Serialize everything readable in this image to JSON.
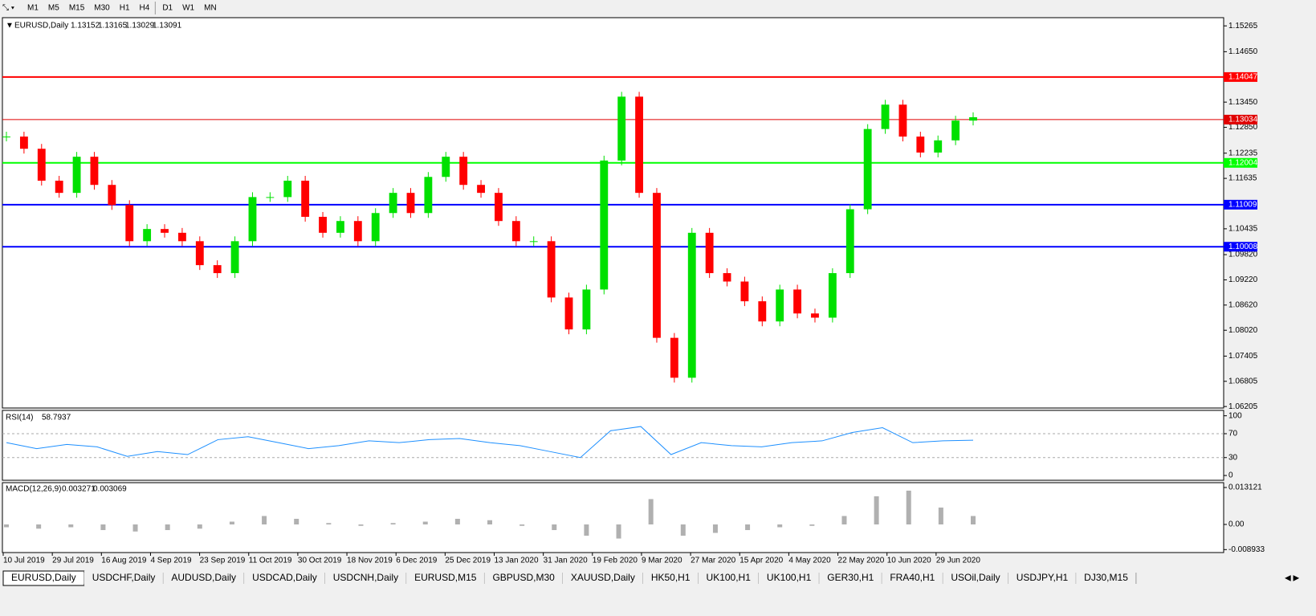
{
  "toolbar": {
    "timeframes": [
      "M1",
      "M5",
      "M15",
      "M30",
      "H1",
      "H4",
      "D1",
      "W1",
      "MN"
    ]
  },
  "chart_data": [
    {
      "type": "candlestick",
      "title": "EURUSD,Daily",
      "quote": [
        1.13152,
        1.13165,
        1.13029,
        1.13091
      ],
      "up_color": "#00e000",
      "down_color": "#ff0000",
      "values": [
        1.1263,
        1.1234,
        1.1158,
        1.1129,
        1.1215,
        1.1148,
        1.11,
        1.1014,
        1.1043,
        1.1034,
        1.1014,
        1.0957,
        1.0938,
        1.1014,
        1.1119,
        1.1119,
        1.1158,
        1.1072,
        1.1034,
        1.1062,
        1.1014,
        1.1081,
        1.1129,
        1.1081,
        1.1167,
        1.1215,
        1.1148,
        1.1129,
        1.1062,
        1.1014,
        1.1014,
        1.088,
        1.0804,
        1.0899,
        1.1206,
        1.1358,
        1.1129,
        1.0784,
        1.0689,
        1.1034,
        1.0938,
        1.0918,
        1.0871,
        1.0823,
        1.0899,
        1.0842,
        1.0832,
        1.0938,
        1.109,
        1.1281,
        1.1339,
        1.1263,
        1.1225,
        1.1254,
        1.1301,
        1.13091
      ],
      "ylim": [
        1.0617,
        1.1546
      ],
      "yticks": [
        1.15265,
        {
          "value": 1.1465,
          "label": "1.14650"
        },
        {
          "value": 1.1345,
          "label": "1.13450"
        },
        {
          "value": 1.1285,
          "label": "1.12850"
        },
        1.12235,
        1.11635,
        1.10435,
        {
          "value": 1.0982,
          "label": "1.09820"
        },
        {
          "value": 1.0922,
          "label": "1.09220"
        },
        {
          "value": 1.0862,
          "label": "1.08620"
        },
        {
          "value": 1.0802,
          "label": "1.08020"
        },
        1.07405,
        1.06805,
        1.06205
      ],
      "levels": [
        {
          "value": 1.14047,
          "color": "#ff0000"
        },
        {
          "value": 1.13034,
          "color": "#e00000"
        },
        {
          "value": 1.12004,
          "color": "#00ff00"
        },
        {
          "value": 1.11009,
          "color": "#0000ff"
        },
        {
          "value": 1.10008,
          "color": "#0000ff"
        }
      ],
      "date_labels": [
        "10 Jul 2019",
        "29 Jul 2019",
        "16 Aug 2019",
        "4 Sep 2019",
        "23 Sep 2019",
        "11 Oct 2019",
        "30 Oct 2019",
        "18 Nov 2019",
        "6 Dec 2019",
        "25 Dec 2019",
        "13 Jan 2020",
        "31 Jan 2020",
        "19 Feb 2020",
        "9 Mar 2020",
        "27 Mar 2020",
        "15 Apr 2020",
        "4 May 2020",
        "22 May 2020",
        "10 Jun 2020",
        "29 Jun 2020"
      ]
    },
    {
      "type": "line",
      "title": "RSI(14)",
      "current": 58.7937,
      "color": "#1e90ff",
      "values": [
        55,
        45,
        52,
        48,
        32,
        40,
        35,
        60,
        65,
        55,
        45,
        50,
        58,
        55,
        60,
        62,
        55,
        50,
        40,
        30,
        75,
        82,
        35,
        55,
        50,
        48,
        55,
        58,
        72,
        80,
        55,
        58,
        59
      ],
      "ylim": [
        -8,
        109
      ],
      "yticks": [
        100,
        70,
        30,
        0
      ],
      "dashed": [
        70,
        30
      ]
    },
    {
      "type": "histogram",
      "title": "MACD(12,26,9)",
      "current": [
        0.003271,
        0.003069
      ],
      "color": "#b0b0b0",
      "values": [
        -0.001,
        -0.0015,
        -0.001,
        -0.002,
        -0.0025,
        -0.002,
        -0.0015,
        0.001,
        0.003,
        0.002,
        0.0005,
        -0.0005,
        0.0005,
        0.001,
        0.002,
        0.0015,
        -0.0005,
        -0.002,
        -0.004,
        -0.005,
        0.009,
        -0.004,
        -0.003,
        -0.002,
        -0.001,
        -0.0005,
        0.003,
        0.01,
        0.012,
        0.006,
        0.003
      ],
      "ylim": [
        -0.00998,
        0.01483
      ],
      "yticks": [
        0.013121,
        {
          "value": 0,
          "label": "0.00"
        },
        -0.008933
      ]
    }
  ],
  "tabs": [
    "EURUSD,Daily",
    "USDCHF,Daily",
    "AUDUSD,Daily",
    "USDCAD,Daily",
    "USDCNH,Daily",
    "EURUSD,M15",
    "GBPUSD,M30",
    "XAUUSD,Daily",
    "HK50,H1",
    "UK100,H1",
    "UK100,H1",
    "GER30,H1",
    "FRA40,H1",
    "USOil,Daily",
    "USDJPY,H1",
    "DJ30,M15"
  ]
}
